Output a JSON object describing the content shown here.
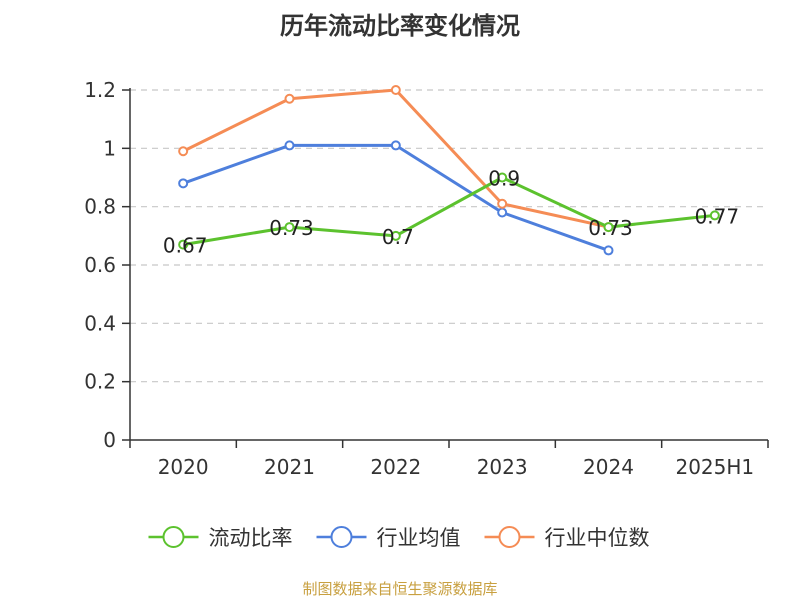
{
  "title": "历年流动比率变化情况",
  "source": "制图数据来自恒生聚源数据库",
  "chart_data": {
    "type": "line",
    "title": "历年流动比率变化情况",
    "categories": [
      "2020",
      "2021",
      "2022",
      "2023",
      "2024",
      "2025H1"
    ],
    "ylim": [
      0,
      1.2
    ],
    "yticks": [
      0,
      0.2,
      0.4,
      0.6,
      0.8,
      1,
      1.2
    ],
    "ytick_labels": [
      "0",
      "0.2",
      "0.4",
      "0.6",
      "0.8",
      "1",
      "1.2"
    ],
    "grid": true,
    "legend_position": "bottom",
    "series": [
      {
        "name": "流动比率",
        "color": "#5cc22e",
        "values": [
          0.67,
          0.73,
          0.7,
          0.9,
          0.73,
          0.77
        ],
        "labels": [
          "0.67",
          "0.73",
          "0.7",
          "0.9",
          "0.73",
          "0.77"
        ]
      },
      {
        "name": "行业均值",
        "color": "#4e7fdc",
        "values": [
          0.88,
          1.01,
          1.01,
          0.78,
          0.65,
          null
        ]
      },
      {
        "name": "行业中位数",
        "color": "#f58c55",
        "values": [
          0.99,
          1.17,
          1.2,
          0.81,
          0.73,
          null
        ]
      }
    ]
  }
}
